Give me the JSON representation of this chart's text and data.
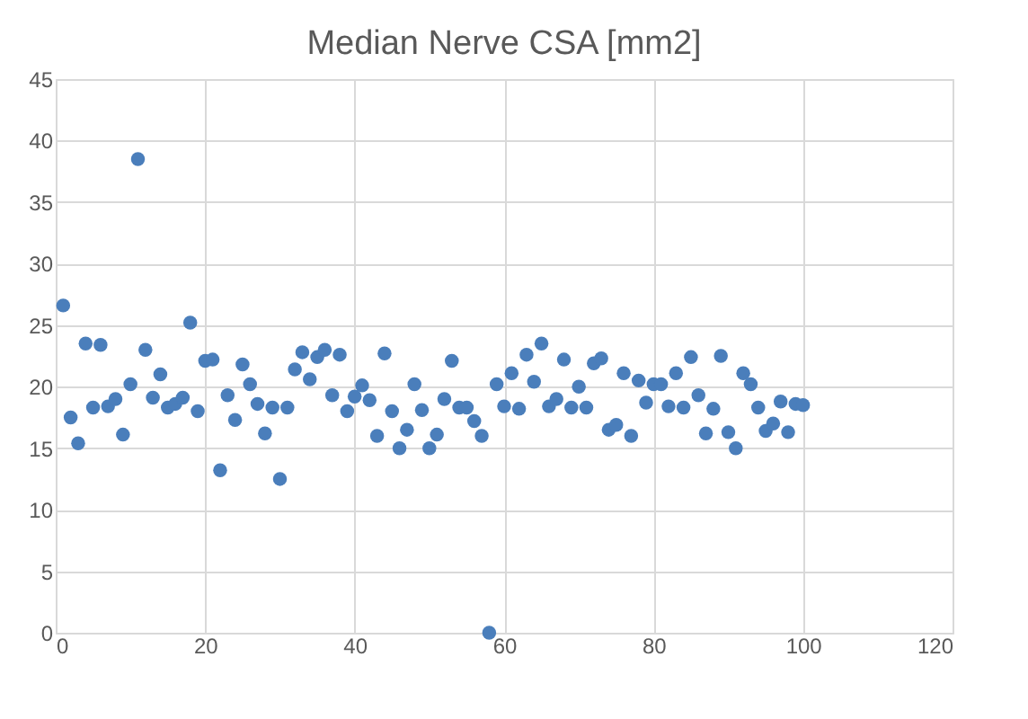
{
  "chart_data": {
    "type": "scatter",
    "title": "Median Nerve CSA [mm2]",
    "x": [
      1,
      2,
      3,
      4,
      5,
      6,
      7,
      8,
      9,
      10,
      11,
      12,
      13,
      14,
      15,
      16,
      17,
      18,
      19,
      20,
      21,
      22,
      23,
      24,
      25,
      26,
      27,
      28,
      29,
      30,
      31,
      32,
      33,
      34,
      35,
      36,
      37,
      38,
      39,
      40,
      41,
      42,
      43,
      44,
      45,
      46,
      47,
      48,
      49,
      50,
      51,
      52,
      53,
      54,
      55,
      56,
      57,
      58,
      59,
      60,
      61,
      62,
      63,
      64,
      65,
      66,
      67,
      68,
      69,
      70,
      71,
      72,
      73,
      74,
      75,
      76,
      77,
      78,
      79,
      80,
      81,
      82,
      83,
      84,
      85,
      86,
      87,
      88,
      89,
      90,
      91,
      92,
      93,
      94,
      95,
      96,
      97,
      98,
      99,
      100
    ],
    "series": [
      {
        "color": "#4a7ebb",
        "values": [
          26.6,
          17.5,
          15.4,
          23.5,
          18.3,
          23.4,
          18.4,
          19.0,
          16.1,
          20.2,
          38.5,
          23.0,
          19.1,
          21.0,
          18.3,
          18.6,
          19.1,
          25.2,
          18.0,
          22.1,
          22.2,
          13.2,
          19.3,
          17.3,
          21.8,
          20.2,
          18.6,
          16.2,
          18.3,
          12.5,
          18.3,
          21.4,
          22.8,
          20.6,
          22.4,
          23.0,
          19.3,
          22.6,
          18.0,
          19.2,
          20.1,
          18.9,
          16.0,
          22.7,
          18.0,
          15.0,
          16.5,
          20.2,
          18.1,
          15.0,
          16.1,
          19.0,
          22.1,
          18.3,
          18.3,
          17.2,
          16.0,
          0,
          20.2,
          18.4,
          21.1,
          18.2,
          22.6,
          20.4,
          23.5,
          18.4,
          19.0,
          22.2,
          18.3,
          20.0,
          18.3,
          21.9,
          22.3,
          16.5,
          16.9,
          21.1,
          16.0,
          20.5,
          18.7,
          20.2,
          20.2,
          18.4,
          21.1,
          18.3,
          22.4,
          19.3,
          16.2,
          18.2,
          22.5,
          16.3,
          15.0,
          21.1,
          20.2,
          18.3,
          16.4,
          17.0,
          18.8,
          16.3,
          18.6,
          18.5
        ]
      }
    ],
    "xlim": [
      0,
      120
    ],
    "xticks": [
      0,
      20,
      40,
      60,
      80,
      100,
      120
    ],
    "ylim": [
      0,
      45
    ],
    "yticks": [
      0,
      5,
      10,
      15,
      20,
      25,
      30,
      35,
      40,
      45
    ],
    "grid": true,
    "legend": false,
    "marker": "circle"
  }
}
